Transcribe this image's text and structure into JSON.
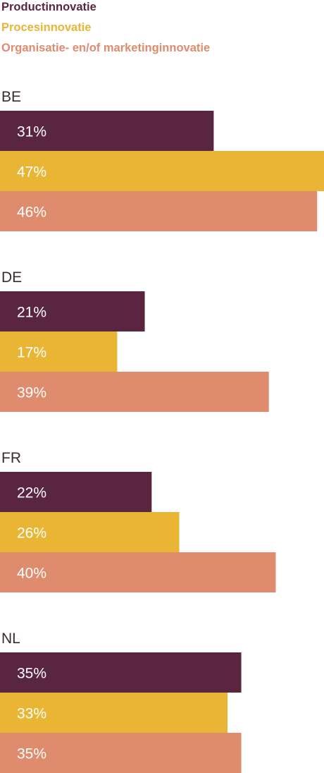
{
  "chart_data": {
    "type": "bar",
    "orientation": "horizontal",
    "categories": [
      "BE",
      "DE",
      "FR",
      "NL"
    ],
    "series": [
      {
        "name": "Productinnovatie",
        "color": "#5a2541",
        "values": [
          31,
          21,
          22,
          35
        ],
        "labels": [
          "31%",
          "21%",
          "22%",
          "35%"
        ]
      },
      {
        "name": "Procesinnovatie",
        "color": "#e8b535",
        "values": [
          47,
          17,
          26,
          33
        ],
        "labels": [
          "47%",
          "17%",
          "26%",
          "33%"
        ]
      },
      {
        "name": "Organisatie- en/of marketinginnovatie",
        "color": "#df8b6d",
        "values": [
          46,
          39,
          40,
          35
        ],
        "labels": [
          "46%",
          "39%",
          "40%",
          "35%"
        ]
      }
    ],
    "xlim": [
      0,
      47
    ],
    "legend_position": "top-left",
    "grid": false
  }
}
